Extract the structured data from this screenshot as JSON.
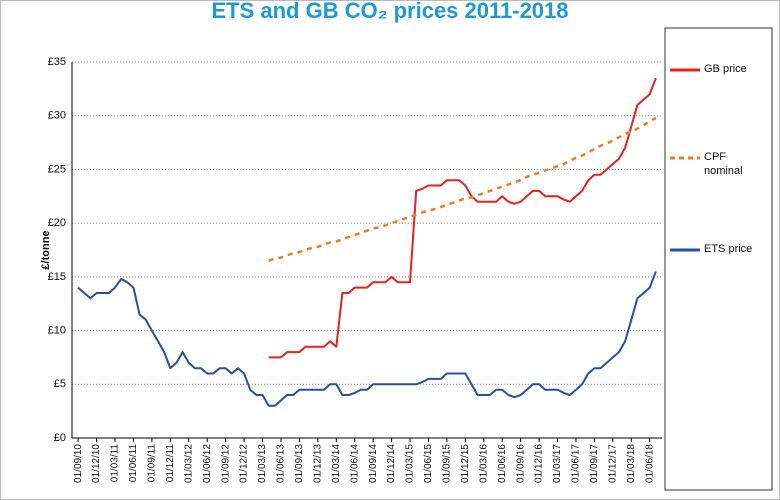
{
  "chart_data": {
    "type": "line",
    "title": "ETS and GB CO₂ prices 2011-2018",
    "y_label": "£/tonne",
    "x": [
      "01/09/10",
      "01/10/10",
      "01/11/10",
      "01/12/10",
      "01/01/11",
      "01/02/11",
      "01/03/11",
      "01/04/11",
      "01/05/11",
      "01/06/11",
      "01/07/11",
      "01/08/11",
      "01/09/11",
      "01/10/11",
      "01/11/11",
      "01/12/11",
      "01/01/12",
      "01/02/12",
      "01/03/12",
      "01/04/12",
      "01/05/12",
      "01/06/12",
      "01/07/12",
      "01/08/12",
      "01/09/12",
      "01/10/12",
      "01/11/12",
      "01/12/12",
      "01/01/13",
      "01/02/13",
      "01/03/13",
      "01/04/13",
      "01/05/13",
      "01/06/13",
      "01/07/13",
      "01/08/13",
      "01/09/13",
      "01/10/13",
      "01/11/13",
      "01/12/13",
      "01/01/14",
      "01/02/14",
      "01/03/14",
      "01/04/14",
      "01/05/14",
      "01/06/14",
      "01/07/14",
      "01/08/14",
      "01/09/14",
      "01/10/14",
      "01/11/14",
      "01/12/14",
      "01/01/15",
      "01/02/15",
      "01/03/15",
      "01/04/15",
      "01/05/15",
      "01/06/15",
      "01/07/15",
      "01/08/15",
      "01/09/15",
      "01/10/15",
      "01/11/15",
      "01/12/15",
      "01/01/16",
      "01/02/16",
      "01/03/16",
      "01/04/16",
      "01/05/16",
      "01/06/16",
      "01/07/16",
      "01/08/16",
      "01/09/16",
      "01/10/16",
      "01/11/16",
      "01/12/16",
      "01/01/17",
      "01/02/17",
      "01/03/17",
      "01/04/17",
      "01/05/17",
      "01/06/17",
      "01/07/17",
      "01/08/17",
      "01/09/17",
      "01/10/17",
      "01/11/17",
      "01/12/17",
      "01/01/18",
      "01/02/18",
      "01/03/18",
      "01/04/18",
      "01/05/18",
      "01/06/18",
      "01/07/18"
    ],
    "series": [
      {
        "name": "GB price",
        "color": "#e8201e",
        "dashed": false,
        "values": [
          null,
          null,
          null,
          null,
          null,
          null,
          null,
          null,
          null,
          null,
          null,
          null,
          null,
          null,
          null,
          null,
          null,
          null,
          null,
          null,
          null,
          null,
          null,
          null,
          null,
          null,
          null,
          null,
          null,
          null,
          null,
          7.5,
          7.5,
          7.5,
          8,
          8,
          8,
          8.5,
          8.5,
          8.5,
          8.5,
          9,
          8.5,
          13.5,
          13.5,
          14,
          14,
          14,
          14.5,
          14.5,
          14.5,
          15,
          14.5,
          14.5,
          14.5,
          23,
          23.2,
          23.5,
          23.5,
          23.5,
          24,
          24,
          24,
          23.5,
          22.5,
          22,
          22,
          22,
          22,
          22.5,
          22,
          21.8,
          22,
          22.5,
          23,
          23,
          22.5,
          22.5,
          22.5,
          22.2,
          22,
          22.5,
          23,
          24,
          24.5,
          24.5,
          25,
          25.5,
          26,
          27,
          29,
          31,
          31.5,
          32,
          33.5
        ]
      },
      {
        "name": "CPF nominal",
        "color": "#f07a2a",
        "dashed": true,
        "values": [
          null,
          null,
          null,
          null,
          null,
          null,
          null,
          null,
          null,
          null,
          null,
          null,
          null,
          null,
          null,
          null,
          null,
          null,
          null,
          null,
          null,
          null,
          null,
          null,
          null,
          null,
          null,
          null,
          null,
          null,
          null,
          16.5,
          16.7,
          16.8,
          17.0,
          17.2,
          17.3,
          17.5,
          17.7,
          17.8,
          18.0,
          18.2,
          18.3,
          18.5,
          18.7,
          18.9,
          19.1,
          19.3,
          19.5,
          19.6,
          19.8,
          20.0,
          20.2,
          20.4,
          20.6,
          20.8,
          21.0,
          21.2,
          21.3,
          21.5,
          21.7,
          21.9,
          22.1,
          22.3,
          22.4,
          22.6,
          22.8,
          23.0,
          23.2,
          23.4,
          23.6,
          23.8,
          24.0,
          24.3,
          24.5,
          24.7,
          24.9,
          25.1,
          25.3,
          25.5,
          25.8,
          26.1,
          26.3,
          26.6,
          26.9,
          27.2,
          27.4,
          27.7,
          28.0,
          28.3,
          28.5,
          28.8,
          29.1,
          29.5,
          29.8
        ]
      },
      {
        "name": "ETS price",
        "color": "#2a4fa0",
        "dashed": false,
        "values": [
          14,
          13.5,
          13,
          13.5,
          13.5,
          13.5,
          14,
          14.8,
          14.5,
          14,
          11.5,
          11,
          10,
          9,
          8,
          6.5,
          7,
          8,
          7,
          6.5,
          6.5,
          6,
          6,
          6.5,
          6.5,
          6,
          6.5,
          6,
          4.5,
          4,
          4,
          3,
          3,
          3.5,
          4,
          4,
          4.5,
          4.5,
          4.5,
          4.5,
          4.5,
          5,
          5,
          4,
          4,
          4.2,
          4.5,
          4.5,
          5,
          5,
          5,
          5,
          5,
          5,
          5,
          5,
          5.2,
          5.5,
          5.5,
          5.5,
          6,
          6,
          6,
          6,
          5,
          4,
          4,
          4,
          4.5,
          4.5,
          4,
          3.8,
          4,
          4.5,
          5,
          5,
          4.5,
          4.5,
          4.5,
          4.2,
          4,
          4.5,
          5,
          6,
          6.5,
          6.5,
          7,
          7.5,
          8,
          9,
          11,
          13,
          13.5,
          14,
          15.5
        ]
      }
    ],
    "xlim": [
      "01/08/10",
      "01/08/18"
    ],
    "xticks": [
      "01/09/10",
      "01/12/10",
      "01/03/11",
      "01/06/11",
      "01/09/11",
      "01/12/11",
      "01/03/12",
      "01/06/12",
      "01/09/12",
      "01/12/12",
      "01/03/13",
      "01/06/13",
      "01/09/13",
      "01/12/13",
      "01/03/14",
      "01/06/14",
      "01/09/14",
      "01/12/14",
      "01/03/15",
      "01/06/15",
      "01/09/15",
      "01/12/15",
      "01/03/16",
      "01/06/16",
      "01/09/16",
      "01/12/16",
      "01/03/17",
      "01/06/17",
      "01/09/17",
      "01/12/17",
      "01/03/18",
      "01/06/18"
    ],
    "ylim": [
      0,
      35
    ],
    "yticks": [
      {
        "value": 0,
        "label": "£0"
      },
      {
        "value": 5,
        "label": "£5"
      },
      {
        "value": 10,
        "label": "£10"
      },
      {
        "value": 15,
        "label": "£15"
      },
      {
        "value": 20,
        "label": "£20"
      },
      {
        "value": 25,
        "label": "£25"
      },
      {
        "value": 30,
        "label": "£30"
      },
      {
        "value": 35,
        "label": "£35"
      }
    ],
    "grid": true,
    "legend": "right"
  }
}
